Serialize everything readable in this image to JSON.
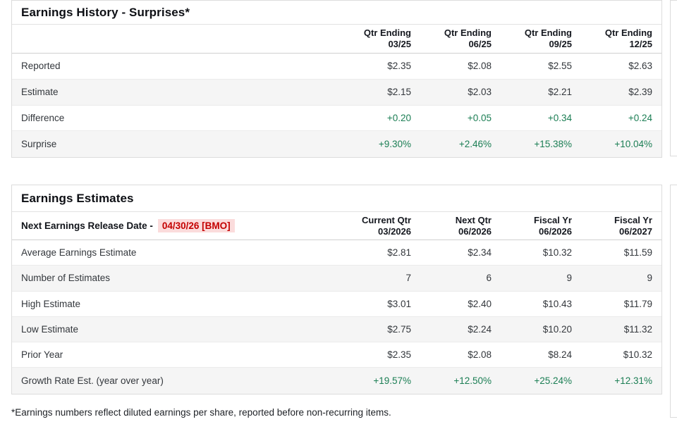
{
  "history": {
    "title": "Earnings History - Surprises*",
    "columns": [
      {
        "line1": "Qtr Ending",
        "line2": "03/25"
      },
      {
        "line1": "Qtr Ending",
        "line2": "06/25"
      },
      {
        "line1": "Qtr Ending",
        "line2": "09/25"
      },
      {
        "line1": "Qtr Ending",
        "line2": "12/25"
      }
    ],
    "rows": [
      {
        "label": "Reported",
        "values": [
          "$2.35",
          "$2.08",
          "$2.55",
          "$2.63"
        ]
      },
      {
        "label": "Estimate",
        "values": [
          "$2.15",
          "$2.03",
          "$2.21",
          "$2.39"
        ]
      },
      {
        "label": "Difference",
        "values": [
          "+0.20",
          "+0.05",
          "+0.34",
          "+0.24"
        ]
      },
      {
        "label": "Surprise",
        "values": [
          "+9.30%",
          "+2.46%",
          "+15.38%",
          "+10.04%"
        ]
      }
    ]
  },
  "estimates": {
    "title": "Earnings Estimates",
    "release_label": "Next Earnings Release Date -",
    "release_date": "04/30/26 [BMO]",
    "columns": [
      {
        "line1": "Current Qtr",
        "line2": "03/2026"
      },
      {
        "line1": "Next Qtr",
        "line2": "06/2026"
      },
      {
        "line1": "Fiscal Yr",
        "line2": "06/2026"
      },
      {
        "line1": "Fiscal Yr",
        "line2": "06/2027"
      }
    ],
    "rows": [
      {
        "label": "Average Earnings Estimate",
        "values": [
          "$2.81",
          "$2.34",
          "$10.32",
          "$11.59"
        ]
      },
      {
        "label": "Number of Estimates",
        "values": [
          "7",
          "6",
          "9",
          "9"
        ]
      },
      {
        "label": "High Estimate",
        "values": [
          "$3.01",
          "$2.40",
          "$10.43",
          "$11.79"
        ]
      },
      {
        "label": "Low Estimate",
        "values": [
          "$2.75",
          "$2.24",
          "$10.20",
          "$11.32"
        ]
      },
      {
        "label": "Prior Year",
        "values": [
          "$2.35",
          "$2.08",
          "$8.24",
          "$10.32"
        ]
      },
      {
        "label": "Growth Rate Est. (year over year)",
        "values": [
          "+19.57%",
          "+12.50%",
          "+25.24%",
          "+12.31%"
        ]
      }
    ]
  },
  "footnote": "*Earnings numbers reflect diluted earnings per share, reported before non-recurring items.",
  "colors": {
    "positive_green": "#1b7e54",
    "alert_red": "#c40000",
    "alert_red_bg": "#fbdcdc",
    "row_band": "#f5f5f5",
    "card_border": "#dcdcdc"
  }
}
